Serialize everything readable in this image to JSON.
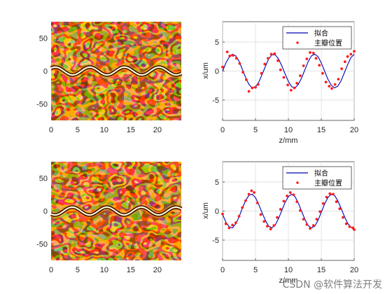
{
  "watermark": "CSDN @软件算法开发",
  "colors": {
    "fit_line": "#0000b4",
    "points": "#ff1e1e",
    "axis": "#262626",
    "grid": "#d9d9d9",
    "image_bright": "#fff6cf",
    "image_dark": "#250800"
  },
  "chart_data": [
    {
      "type": "heatmap",
      "xlim": [
        0,
        24.5
      ],
      "ylim": [
        -75,
        75
      ],
      "xticks": [
        "0",
        "5",
        "10",
        "15",
        "20"
      ],
      "yticks": [
        "50",
        "0",
        "-50"
      ],
      "ridge": {
        "amplitude": 6,
        "period": 6.5,
        "phase": 0.8
      },
      "colormap": "hot"
    },
    {
      "type": "line",
      "xlabel": "z/mm",
      "ylabel": "x/um",
      "xlim": [
        0,
        20
      ],
      "ylim": [
        -8.5,
        8.5
      ],
      "xticks": [
        "0",
        "5",
        "10",
        "15",
        "20"
      ],
      "yticks": [
        "5",
        "0",
        "-5"
      ],
      "grid": true,
      "legend_position": "top-right",
      "series": [
        {
          "name": "拟合",
          "style": "line",
          "x": [
            0.0,
            0.5,
            1.0,
            1.5,
            2.0,
            2.5,
            3.0,
            3.5,
            4.0,
            4.5,
            5.0,
            5.5,
            6.0,
            6.5,
            7.0,
            7.5,
            8.0,
            8.5,
            9.0,
            9.5,
            10.0,
            10.5,
            11.0,
            11.5,
            12.0,
            12.5,
            13.0,
            13.5,
            14.0,
            14.5,
            15.0,
            15.5,
            16.0,
            16.5,
            17.0,
            17.5,
            18.0,
            18.5,
            19.0,
            19.5,
            20.0
          ],
          "y": [
            0.0,
            1.4,
            2.4,
            2.9,
            2.6,
            1.7,
            0.3,
            -1.1,
            -2.3,
            -2.9,
            -2.7,
            -1.9,
            -0.6,
            0.8,
            2.1,
            2.8,
            2.8,
            2.1,
            0.9,
            -0.5,
            -1.8,
            -2.7,
            -2.9,
            -2.3,
            -1.2,
            0.2,
            1.6,
            2.6,
            2.9,
            2.5,
            1.4,
            0.0,
            -1.4,
            -2.4,
            -2.9,
            -2.6,
            -1.7,
            -0.3,
            1.1,
            2.3,
            2.9
          ]
        },
        {
          "name": "主瓣位置",
          "style": "points",
          "x": [
            0.0,
            0.7,
            1.1,
            1.6,
            2.1,
            2.6,
            3.1,
            3.6,
            4.0,
            4.5,
            5.0,
            5.4,
            5.9,
            6.4,
            6.9,
            7.4,
            7.9,
            8.4,
            8.8,
            9.3,
            9.9,
            10.4,
            10.9,
            11.3,
            11.8,
            12.3,
            12.8,
            13.3,
            13.8,
            14.2,
            14.7,
            15.2,
            15.7,
            16.2,
            16.6,
            17.1,
            17.6,
            18.1,
            18.6,
            19.0,
            19.5,
            20.0
          ],
          "y": [
            0.7,
            3.3,
            2.6,
            2.7,
            2.2,
            1.3,
            -0.2,
            -1.5,
            -3.5,
            -2.9,
            -2.8,
            -2.3,
            -0.4,
            1.2,
            2.2,
            2.9,
            3.0,
            1.8,
            0.2,
            -1.1,
            -2.4,
            -3.3,
            -2.9,
            -2.1,
            -0.8,
            0.9,
            2.1,
            3.2,
            3.1,
            2.2,
            1.0,
            -0.4,
            -1.9,
            -2.6,
            -3.0,
            -2.3,
            -1.4,
            0.4,
            1.6,
            2.5,
            2.9,
            3.4
          ]
        }
      ]
    },
    {
      "type": "heatmap",
      "xlim": [
        0,
        24.5
      ],
      "ylim": [
        -75,
        75
      ],
      "xticks": [
        "0",
        "5",
        "10",
        "15",
        "20"
      ],
      "yticks": [
        "50",
        "0",
        "-50"
      ],
      "ridge": {
        "amplitude": 6,
        "period": 6.5,
        "phase": 4.0
      },
      "colormap": "hot"
    },
    {
      "type": "line",
      "xlabel": "z/mm",
      "ylabel": "x/um",
      "xlim": [
        0,
        20
      ],
      "ylim": [
        -8.5,
        8.5
      ],
      "xticks": [
        "0",
        "5",
        "10",
        "15",
        "20"
      ],
      "yticks": [
        "5",
        "0",
        "-5"
      ],
      "grid": true,
      "legend_position": "top-right",
      "series": [
        {
          "name": "拟合",
          "style": "line",
          "x": [
            0.0,
            0.5,
            1.0,
            1.5,
            2.0,
            2.5,
            3.0,
            3.5,
            4.0,
            4.5,
            5.0,
            5.5,
            6.0,
            6.5,
            7.0,
            7.5,
            8.0,
            8.5,
            9.0,
            9.5,
            10.0,
            10.5,
            11.0,
            11.5,
            12.0,
            12.5,
            13.0,
            13.5,
            14.0,
            14.5,
            15.0,
            15.5,
            16.0,
            16.5,
            17.0,
            17.5,
            18.0,
            18.5,
            19.0,
            19.5,
            20.0
          ],
          "y": [
            -0.6,
            -1.9,
            -2.7,
            -2.9,
            -2.2,
            -1.0,
            0.5,
            1.8,
            2.7,
            2.9,
            2.3,
            1.1,
            -0.3,
            -1.6,
            -2.6,
            -2.9,
            -2.4,
            -1.3,
            0.1,
            1.5,
            2.5,
            2.9,
            2.5,
            1.4,
            0.0,
            -1.4,
            -2.5,
            -2.9,
            -2.6,
            -1.6,
            -0.2,
            1.2,
            2.3,
            2.9,
            2.7,
            1.8,
            0.5,
            -0.9,
            -2.1,
            -2.8,
            -2.8
          ]
        },
        {
          "name": "主瓣位置",
          "style": "points",
          "x": [
            0.0,
            0.5,
            1.0,
            1.5,
            2.0,
            2.5,
            3.0,
            3.5,
            4.0,
            4.4,
            4.8,
            5.3,
            5.8,
            6.3,
            6.8,
            7.3,
            7.8,
            8.3,
            8.8,
            9.3,
            9.8,
            10.3,
            10.8,
            11.3,
            11.8,
            12.3,
            12.8,
            13.3,
            13.8,
            14.3,
            14.8,
            15.3,
            15.8,
            16.3,
            16.8,
            17.3,
            17.8,
            18.3,
            18.8,
            19.3,
            19.8,
            20.0
          ],
          "y": [
            -0.5,
            -2.2,
            -2.9,
            -2.4,
            -2.0,
            -0.9,
            0.6,
            1.8,
            2.9,
            3.5,
            3.2,
            1.4,
            -0.6,
            -1.8,
            -2.6,
            -3.1,
            -2.5,
            -1.1,
            0.3,
            1.7,
            2.6,
            3.2,
            2.8,
            1.6,
            0.1,
            -1.4,
            -2.3,
            -3.0,
            -2.5,
            -1.4,
            -0.1,
            1.3,
            2.4,
            3.0,
            2.9,
            1.6,
            0.4,
            -1.1,
            -2.2,
            -2.7,
            -2.9,
            -3.2
          ]
        }
      ]
    }
  ]
}
